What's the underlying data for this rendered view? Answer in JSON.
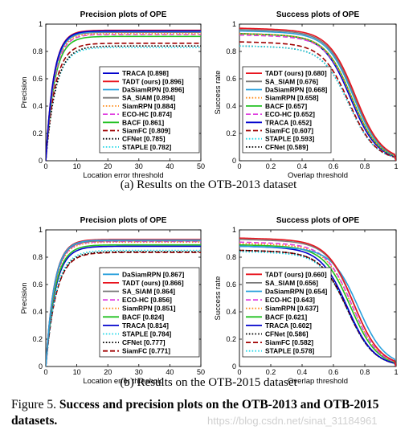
{
  "figure": {
    "caption_prefix": "Figure 5.",
    "caption_text": "Success and precision plots on the OTB-2013 and OTB-2015 datasets.",
    "subcaption_a": "(a)  Results on the OTB-2013 dataset",
    "subcaption_b": "(b)  Results on the OTB-2015 dataset",
    "watermark": "https://blog.csdn.net/sinat_31184961"
  },
  "chart_data": [
    {
      "id": "prec2013",
      "type": "line",
      "title": "Precision plots of OPE",
      "xlabel": "Location error threshold",
      "ylabel": "Precision",
      "xlim": [
        0,
        50
      ],
      "ylim": [
        0,
        1
      ],
      "xticks": [
        0,
        10,
        20,
        30,
        40,
        50
      ],
      "xtick_labels": [
        "0",
        "10",
        "20",
        "30",
        "40",
        "50"
      ],
      "yticks": [
        0,
        0.2,
        0.4,
        0.6,
        0.8,
        1
      ],
      "ytick_labels": [
        "0",
        "0.2",
        "0.4",
        "0.6",
        "0.8",
        "1"
      ],
      "legend_position": "lower-right",
      "grid": false,
      "series": [
        {
          "name": "TRACA [0.898]",
          "color": "#0000cc",
          "dash": "solid",
          "final": 0.95,
          "k": 0.4
        },
        {
          "name": "TADT (ours) [0.896]",
          "color": "#e8141e",
          "dash": "solid",
          "final": 0.955,
          "k": 0.4
        },
        {
          "name": "DaSiamRPN [0.896]",
          "color": "#2aa0dc",
          "dash": "solid",
          "final": 0.945,
          "k": 0.39
        },
        {
          "name": "SA_SIAM [0.894]",
          "color": "#7a7a7a",
          "dash": "solid",
          "final": 0.94,
          "k": 0.39
        },
        {
          "name": "SiamRPN [0.884]",
          "color": "#ff8c1a",
          "dash": "dotted",
          "final": 0.93,
          "k": 0.38
        },
        {
          "name": "ECO-HC [0.874]",
          "color": "#e040e0",
          "dash": "dashed",
          "final": 0.925,
          "k": 0.37
        },
        {
          "name": "BACF [0.861]",
          "color": "#20c020",
          "dash": "solid",
          "final": 0.91,
          "k": 0.36
        },
        {
          "name": "SiamFC [0.809]",
          "color": "#a00000",
          "dash": "dashed",
          "final": 0.86,
          "k": 0.33
        },
        {
          "name": "CFNet [0.785]",
          "color": "#000000",
          "dash": "dotted",
          "final": 0.84,
          "k": 0.31
        },
        {
          "name": "STAPLE [0.782]",
          "color": "#22d8e8",
          "dash": "dotted",
          "final": 0.83,
          "k": 0.31
        }
      ]
    },
    {
      "id": "succ2013",
      "type": "line",
      "title": "Success plots of OPE",
      "xlabel": "Overlap threshold",
      "ylabel": "Success rate",
      "xlim": [
        0,
        1
      ],
      "ylim": [
        0,
        1
      ],
      "xticks": [
        0,
        0.2,
        0.4,
        0.6,
        0.8,
        1
      ],
      "xtick_labels": [
        "0",
        "0.2",
        "0.4",
        "0.6",
        "0.8",
        "1"
      ],
      "yticks": [
        0,
        0.2,
        0.4,
        0.6,
        0.8,
        1
      ],
      "ytick_labels": [
        "0",
        "0.2",
        "0.4",
        "0.6",
        "0.8",
        "1"
      ],
      "legend_position": "lower-left",
      "grid": false,
      "series": [
        {
          "name": "TADT (ours) [0.680]",
          "color": "#e8141e",
          "dash": "solid",
          "start": 0.97,
          "k": 0.74
        },
        {
          "name": "SA_SIAM [0.676]",
          "color": "#7a7a7a",
          "dash": "solid",
          "start": 0.96,
          "k": 0.735
        },
        {
          "name": "DaSiamRPN [0.668]",
          "color": "#2aa0dc",
          "dash": "solid",
          "start": 0.95,
          "k": 0.73
        },
        {
          "name": "SiamRPN [0.658]",
          "color": "#ff8c1a",
          "dash": "dotted",
          "start": 0.93,
          "k": 0.72
        },
        {
          "name": "BACF [0.657]",
          "color": "#20c020",
          "dash": "solid",
          "start": 0.93,
          "k": 0.72
        },
        {
          "name": "ECO-HC [0.652]",
          "color": "#e040e0",
          "dash": "dashed",
          "start": 0.92,
          "k": 0.72
        },
        {
          "name": "TRACA [0.652]",
          "color": "#0000cc",
          "dash": "solid",
          "start": 0.93,
          "k": 0.71
        },
        {
          "name": "SiamFC [0.607]",
          "color": "#a00000",
          "dash": "dashed",
          "start": 0.87,
          "k": 0.7
        },
        {
          "name": "STAPLE [0.593]",
          "color": "#22d8e8",
          "dash": "dotted",
          "start": 0.84,
          "k": 0.7
        },
        {
          "name": "CFNet [0.589]",
          "color": "#000000",
          "dash": "dotted",
          "start": 0.84,
          "k": 0.7
        }
      ]
    },
    {
      "id": "prec2015",
      "type": "line",
      "title": "Precision plots of OPE",
      "xlabel": "Location error threshold",
      "ylabel": "Precision",
      "xlim": [
        0,
        50
      ],
      "ylim": [
        0,
        1
      ],
      "xticks": [
        0,
        10,
        20,
        30,
        40,
        50
      ],
      "xtick_labels": [
        "0",
        "10",
        "20",
        "30",
        "40",
        "50"
      ],
      "yticks": [
        0,
        0.2,
        0.4,
        0.6,
        0.8,
        1
      ],
      "ytick_labels": [
        "0",
        "0.2",
        "0.4",
        "0.6",
        "0.8",
        "1"
      ],
      "legend_position": "lower-right",
      "grid": false,
      "series": [
        {
          "name": "DaSiamRPN [0.867]",
          "color": "#2aa0dc",
          "dash": "solid",
          "final": 0.925,
          "k": 0.37
        },
        {
          "name": "TADT (ours) [0.866]",
          "color": "#e8141e",
          "dash": "solid",
          "final": 0.93,
          "k": 0.37
        },
        {
          "name": "SA_SIAM [0.864]",
          "color": "#7a7a7a",
          "dash": "solid",
          "final": 0.92,
          "k": 0.365
        },
        {
          "name": "ECO-HC [0.856]",
          "color": "#e040e0",
          "dash": "dashed",
          "final": 0.915,
          "k": 0.36
        },
        {
          "name": "SiamRPN [0.851]",
          "color": "#ff8c1a",
          "dash": "dotted",
          "final": 0.91,
          "k": 0.355
        },
        {
          "name": "BACF [0.824]",
          "color": "#20c020",
          "dash": "solid",
          "final": 0.89,
          "k": 0.34
        },
        {
          "name": "TRACA [0.814]",
          "color": "#0000cc",
          "dash": "solid",
          "final": 0.88,
          "k": 0.33
        },
        {
          "name": "STAPLE [0.784]",
          "color": "#22d8e8",
          "dash": "dotted",
          "final": 0.85,
          "k": 0.31
        },
        {
          "name": "CFNet [0.777]",
          "color": "#000000",
          "dash": "dotted",
          "final": 0.84,
          "k": 0.305
        },
        {
          "name": "SiamFC [0.771]",
          "color": "#a00000",
          "dash": "dashed",
          "final": 0.835,
          "k": 0.3
        }
      ]
    },
    {
      "id": "succ2015",
      "type": "line",
      "title": "Success plots of OPE",
      "xlabel": "Overlap threshold",
      "ylabel": "Success rate",
      "xlim": [
        0,
        1
      ],
      "ylim": [
        0,
        1
      ],
      "xticks": [
        0,
        0.2,
        0.4,
        0.6,
        0.8,
        1
      ],
      "xtick_labels": [
        "0",
        "0.2",
        "0.4",
        "0.6",
        "0.8",
        "1"
      ],
      "yticks": [
        0,
        0.2,
        0.4,
        0.6,
        0.8,
        1
      ],
      "ytick_labels": [
        "0",
        "0.2",
        "0.4",
        "0.6",
        "0.8",
        "1"
      ],
      "legend_position": "lower-left",
      "grid": false,
      "series": [
        {
          "name": "TADT (ours) [0.660]",
          "color": "#e8141e",
          "dash": "solid",
          "start": 0.94,
          "k": 0.73
        },
        {
          "name": "SA_SIAM [0.656]",
          "color": "#7a7a7a",
          "dash": "solid",
          "start": 0.93,
          "k": 0.73
        },
        {
          "name": "DaSiamRPN [0.654]",
          "color": "#2aa0dc",
          "dash": "solid",
          "start": 0.88,
          "k": 0.76
        },
        {
          "name": "ECO-HC [0.643]",
          "color": "#e040e0",
          "dash": "dashed",
          "start": 0.91,
          "k": 0.72
        },
        {
          "name": "SiamRPN [0.637]",
          "color": "#ff8c1a",
          "dash": "dotted",
          "start": 0.9,
          "k": 0.72
        },
        {
          "name": "BACF [0.621]",
          "color": "#20c020",
          "dash": "solid",
          "start": 0.89,
          "k": 0.71
        },
        {
          "name": "TRACA [0.602]",
          "color": "#0000cc",
          "dash": "solid",
          "start": 0.88,
          "k": 0.69
        },
        {
          "name": "CFNet [0.586]",
          "color": "#000000",
          "dash": "dotted",
          "start": 0.85,
          "k": 0.69
        },
        {
          "name": "SiamFC [0.582]",
          "color": "#a00000",
          "dash": "dashed",
          "start": 0.85,
          "k": 0.69
        },
        {
          "name": "STAPLE [0.578]",
          "color": "#22d8e8",
          "dash": "dotted",
          "start": 0.84,
          "k": 0.69
        }
      ]
    }
  ]
}
